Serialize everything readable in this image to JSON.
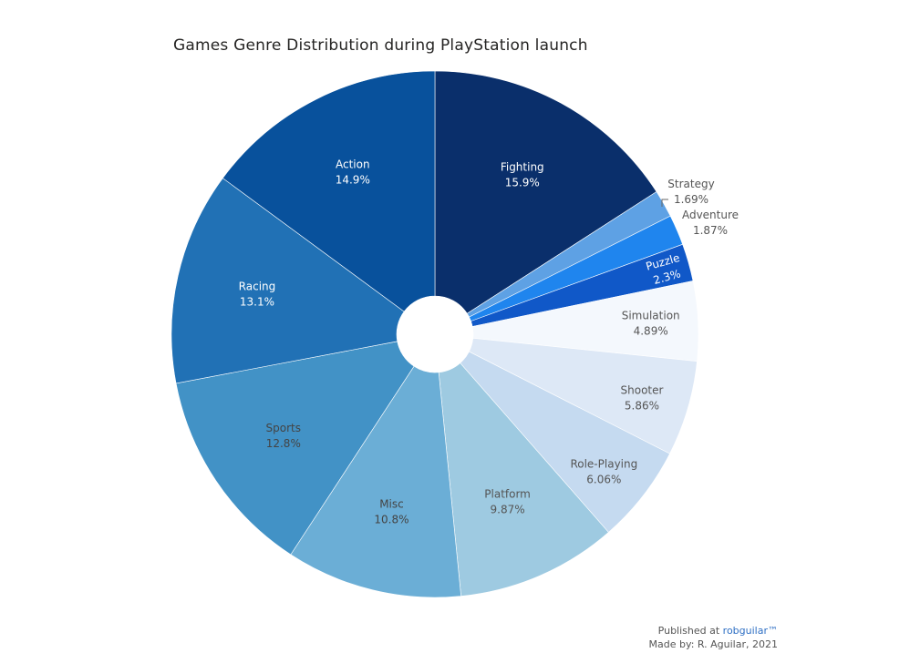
{
  "title": "Games Genre Distribution during PlayStation launch",
  "footer": {
    "published_prefix": "Published at ",
    "published_brand": "robguilar™",
    "made_by": "Made by: R. Aguilar, 2021"
  },
  "chart_data": {
    "type": "pie",
    "donut": true,
    "start": "12 o'clock, clockwise",
    "slices": [
      {
        "label": "Fighting",
        "pct_label": "15.9%",
        "value": 15.9,
        "color": "#0a2f6b",
        "text_color": "#ffffff"
      },
      {
        "label": "Strategy",
        "pct_label": "1.69%",
        "value": 1.69,
        "color": "#5ea1e4",
        "text_color": "#555555"
      },
      {
        "label": "Adventure",
        "pct_label": "1.87%",
        "value": 1.87,
        "color": "#1f85ee",
        "text_color": "#555555"
      },
      {
        "label": "Puzzle",
        "pct_label": "2.3%",
        "value": 2.3,
        "color": "#1058c8",
        "text_color": "#ffffff"
      },
      {
        "label": "Simulation",
        "pct_label": "4.89%",
        "value": 4.89,
        "color": "#f4f8fd",
        "text_color": "#555555"
      },
      {
        "label": "Shooter",
        "pct_label": "5.86%",
        "value": 5.86,
        "color": "#dde8f6",
        "text_color": "#555555"
      },
      {
        "label": "Role-Playing",
        "pct_label": "6.06%",
        "value": 6.06,
        "color": "#c5daf0",
        "text_color": "#555555"
      },
      {
        "label": "Platform",
        "pct_label": "9.87%",
        "value": 9.87,
        "color": "#9ecae1",
        "text_color": "#555555"
      },
      {
        "label": "Misc",
        "pct_label": "10.8%",
        "value": 10.8,
        "color": "#6baed6",
        "text_color": "#444444"
      },
      {
        "label": "Sports",
        "pct_label": "12.8%",
        "value": 12.8,
        "color": "#4292c6",
        "text_color": "#444444"
      },
      {
        "label": "Racing",
        "pct_label": "13.1%",
        "value": 13.1,
        "color": "#2171b5",
        "text_color": "#ffffff"
      },
      {
        "label": "Action",
        "pct_label": "14.9%",
        "value": 14.9,
        "color": "#08519c",
        "text_color": "#ffffff"
      }
    ]
  }
}
